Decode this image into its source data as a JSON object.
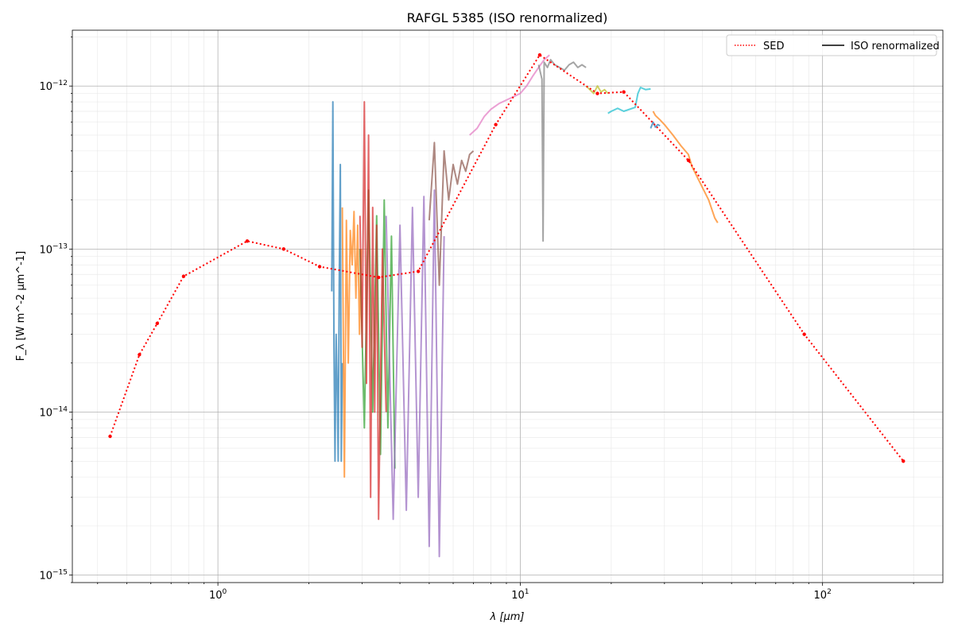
{
  "chart_data": {
    "type": "line",
    "title": "RAFGL 5385 (ISO renormalized)",
    "xlabel": "λ [μm]",
    "ylabel": "F_λ [W m^-2 μm^-1]",
    "xscale": "log",
    "yscale": "log",
    "xlim": [
      0.33,
      250
    ],
    "ylim": [
      9e-16,
      2.2e-12
    ],
    "grid": true,
    "legend_position": "top-right",
    "x_ticks": [
      {
        "value": 1,
        "base": "10",
        "exp": "0"
      },
      {
        "value": 10,
        "base": "10",
        "exp": "1"
      },
      {
        "value": 100,
        "base": "10",
        "exp": "2"
      }
    ],
    "y_ticks": [
      {
        "value": 1e-15,
        "base": "10",
        "exp": "−15"
      },
      {
        "value": 1e-14,
        "base": "10",
        "exp": "−14"
      },
      {
        "value": 1e-13,
        "base": "10",
        "exp": "−13"
      },
      {
        "value": 1e-12,
        "base": "10",
        "exp": "−12"
      }
    ],
    "legend": [
      {
        "label": "SED",
        "color": "#ff0000",
        "style": "dotted"
      },
      {
        "label": "ISO renormalized",
        "color": "#000000",
        "style": "solid"
      }
    ],
    "sed": {
      "name": "SED",
      "color": "#ff0000",
      "x": [
        0.44,
        0.55,
        0.63,
        0.77,
        1.25,
        1.65,
        2.17,
        3.4,
        4.6,
        8.3,
        11.6,
        18,
        22,
        36,
        87,
        185
      ],
      "y": [
        7.1e-15,
        2.25e-14,
        3.5e-14,
        6.8e-14,
        1.12e-13,
        1e-13,
        7.8e-14,
        6.7e-14,
        7.3e-14,
        5.8e-13,
        1.55e-12,
        9e-13,
        9.2e-13,
        3.5e-13,
        3e-14,
        5e-15
      ]
    },
    "spectra": [
      {
        "color": "#1f77b4",
        "x": [
          2.38,
          2.4,
          2.42,
          2.44,
          2.46,
          2.48,
          2.5,
          2.52,
          2.54,
          2.56,
          2.58
        ],
        "y": [
          5.5e-14,
          8e-13,
          2.5e-14,
          5e-15,
          3e-14,
          1.5e-14,
          5e-15,
          6e-14,
          3.3e-13,
          5e-15,
          2e-14
        ]
      },
      {
        "color": "#ff7f0e",
        "x": [
          2.58,
          2.62,
          2.66,
          2.7,
          2.74,
          2.78,
          2.82,
          2.86,
          2.9,
          2.94,
          2.98
        ],
        "y": [
          1.8e-13,
          4e-15,
          1.5e-13,
          2e-14,
          1.3e-13,
          8e-14,
          1.7e-13,
          5e-14,
          1.4e-13,
          3e-14,
          1e-13
        ]
      },
      {
        "color": "#2ca02c",
        "x": [
          2.95,
          3.05,
          3.15,
          3.25,
          3.35,
          3.45,
          3.55,
          3.65,
          3.75,
          3.85
        ],
        "y": [
          1e-13,
          8e-15,
          2.3e-13,
          1e-14,
          1.6e-13,
          5.5e-15,
          2e-13,
          8e-15,
          1.2e-13,
          4.5e-15
        ]
      },
      {
        "color": "#d62728",
        "x": [
          2.95,
          3.0,
          3.05,
          3.1,
          3.15,
          3.2,
          3.25,
          3.3,
          3.35,
          3.4,
          3.5,
          3.6
        ],
        "y": [
          1.6e-13,
          2.5e-14,
          8e-13,
          1.5e-14,
          5e-13,
          3e-15,
          1.8e-13,
          1e-14,
          1.4e-13,
          2.2e-15,
          1e-13,
          1e-14
        ]
      },
      {
        "color": "#9467bd",
        "x": [
          3.6,
          3.8,
          4.0,
          4.2,
          4.4,
          4.6,
          4.8,
          5.0,
          5.2,
          5.4,
          5.6
        ],
        "y": [
          1.6e-13,
          2.2e-15,
          1.4e-13,
          2.5e-15,
          1.8e-13,
          3e-15,
          2.1e-13,
          1.5e-15,
          2.3e-13,
          1.3e-15,
          1.2e-13
        ]
      },
      {
        "color": "#8c564b",
        "x": [
          5.0,
          5.2,
          5.4,
          5.6,
          5.8,
          6.0,
          6.2,
          6.4,
          6.6,
          6.8,
          7.0
        ],
        "y": [
          1.5e-13,
          4.5e-13,
          6e-14,
          4e-13,
          2e-13,
          3.3e-13,
          2.5e-13,
          3.5e-13,
          3e-13,
          3.8e-13,
          4e-13
        ]
      },
      {
        "color": "#e377c2",
        "x": [
          6.8,
          7.2,
          7.6,
          8.0,
          8.5,
          9.0,
          9.5,
          10.0,
          10.5,
          11.0,
          11.5,
          12.0,
          12.5
        ],
        "y": [
          5e-13,
          5.5e-13,
          6.5e-13,
          7.2e-13,
          7.8e-13,
          8.2e-13,
          8.6e-13,
          9e-13,
          1e-12,
          1.15e-12,
          1.3e-12,
          1.45e-12,
          1.55e-12
        ]
      },
      {
        "color": "#7f7f7f",
        "x": [
          11.5,
          11.8,
          11.9,
          12.0,
          12.3,
          12.6,
          13.0,
          13.5,
          14.0,
          14.5,
          15.0,
          15.5,
          16.0,
          16.5
        ],
        "y": [
          1.35e-12,
          1.1e-12,
          1.12e-13,
          1.4e-12,
          1.3e-12,
          1.45e-12,
          1.35e-12,
          1.3e-12,
          1.25e-12,
          1.35e-12,
          1.4e-12,
          1.3e-12,
          1.35e-12,
          1.3e-12
        ]
      },
      {
        "color": "#bcbd22",
        "x": [
          16.5,
          17.0,
          17.5,
          18.0,
          18.5,
          19.0,
          19.5
        ],
        "y": [
          1e-12,
          9.5e-13,
          9e-13,
          1e-12,
          9.2e-13,
          9.5e-13,
          9e-13
        ]
      },
      {
        "color": "#17becf",
        "x": [
          19.5,
          20.0,
          21.0,
          22.0,
          23.0,
          24.0,
          24.5,
          25.0,
          26.0,
          27.0
        ],
        "y": [
          6.8e-13,
          7e-13,
          7.3e-13,
          7e-13,
          7.2e-13,
          7.4e-13,
          9e-13,
          9.8e-13,
          9.5e-13,
          9.6e-13
        ]
      },
      {
        "color": "#1f77b4",
        "x": [
          27.0,
          27.5,
          28.0,
          28.5,
          29.0
        ],
        "y": [
          5.5e-13,
          6e-13,
          5.6e-13,
          5.8e-13,
          5.7e-13
        ]
      },
      {
        "color": "#ff7f0e",
        "x": [
          27.5,
          28.0,
          29.0,
          30.0,
          32.0,
          34.0,
          36.0,
          37.0,
          38.0,
          40.0,
          42.0,
          44.0,
          45.0
        ],
        "y": [
          7e-13,
          6.6e-13,
          6.2e-13,
          5.8e-13,
          5e-13,
          4.3e-13,
          3.8e-13,
          3.2e-13,
          2.9e-13,
          2.4e-13,
          2e-13,
          1.55e-13,
          1.45e-13
        ]
      }
    ]
  }
}
